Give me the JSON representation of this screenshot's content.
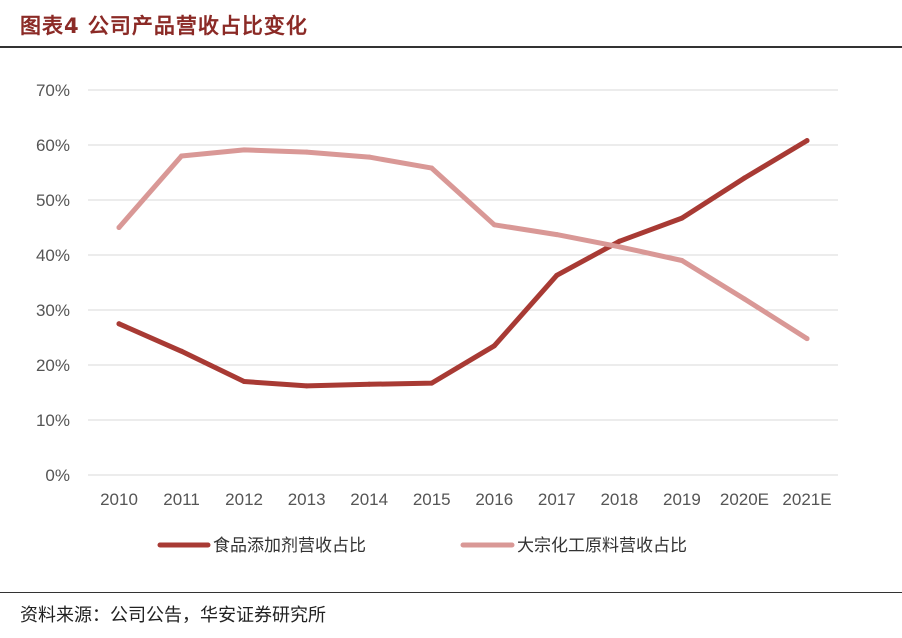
{
  "header": {
    "title": "图表4 公司产品营收占比变化"
  },
  "footer": {
    "source": "资料来源：公司公告，华安证券研究所"
  },
  "colors": {
    "series1": "#a83a34",
    "series2": "#d99896",
    "grid": "#d9d9d9",
    "title": "#8b2a26"
  },
  "chart_data": {
    "type": "line",
    "title": "",
    "xlabel": "",
    "ylabel": "",
    "categories": [
      "2010",
      "2011",
      "2012",
      "2013",
      "2014",
      "2015",
      "2016",
      "2017",
      "2018",
      "2019",
      "2020E",
      "2021E"
    ],
    "ylim": [
      0,
      70
    ],
    "yticks": [
      "0%",
      "10%",
      "20%",
      "30%",
      "40%",
      "50%",
      "60%",
      "70%"
    ],
    "grid": true,
    "legend": "bottom",
    "series": [
      {
        "name": "食品添加剂营收占比",
        "values": [
          27.5,
          22.5,
          17.0,
          16.2,
          16.5,
          16.7,
          23.5,
          36.3,
          42.5,
          46.7,
          54.0,
          60.8
        ]
      },
      {
        "name": "大宗化工原料营收占比",
        "values": [
          45.0,
          58.0,
          59.1,
          58.7,
          57.8,
          55.8,
          45.5,
          43.7,
          41.5,
          39.0,
          32.0,
          24.8
        ]
      }
    ]
  }
}
